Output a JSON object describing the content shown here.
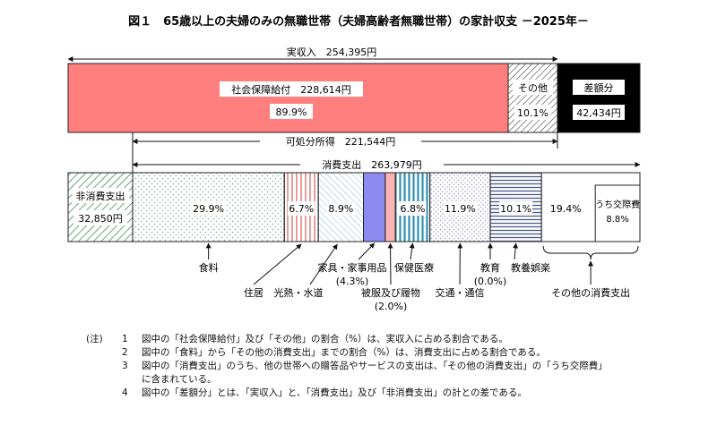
{
  "title": "図１　65歳以上の夫婦のみの無職世帯（夫婦高齢者無職世帯）の家計収支 －2025年－",
  "chart_data": {
    "type": "bar",
    "income_bar": {
      "total_label": "実収入　254,395円",
      "total": 254395,
      "segments": [
        {
          "name": "社会保障給付",
          "value_label": "228,614円",
          "pct_label": "89.9%",
          "value": 228614,
          "pct": 89.9,
          "color": "#ff7f7f"
        },
        {
          "name": "その他",
          "pct_label": "10.1%",
          "value": 25781,
          "pct": 10.1,
          "color": "#ffffff"
        },
        {
          "name": "差額分",
          "value_label": "42,434円",
          "value": 42434,
          "color": "#000000"
        }
      ]
    },
    "disposable_label": "可処分所得　221,544円",
    "disposable": 221544,
    "expense_bar": {
      "total_label": "消費支出　263,979円",
      "total": 263979,
      "non_consumption": {
        "name": "非消費支出",
        "value_label": "32,850円",
        "value": 32850
      },
      "segments": [
        {
          "name": "食料",
          "value": 29.9,
          "pct_label": "29.9%"
        },
        {
          "name": "住居",
          "value": 6.7,
          "pct_label": "6.7%"
        },
        {
          "name": "光熱・水道",
          "value": 8.9,
          "pct_label": "8.9%"
        },
        {
          "name": "家具・家事用品",
          "value": 4.3,
          "pct_label": "(4.3%)"
        },
        {
          "name": "被服及び履物",
          "value": 2.0,
          "pct_label": "(2.0%)"
        },
        {
          "name": "保健医療",
          "value": 6.8,
          "pct_label": "6.8%"
        },
        {
          "name": "交通・通信",
          "value": 11.9,
          "pct_label": "11.9%"
        },
        {
          "name": "教育",
          "value": 0.0,
          "pct_label": "(0.0%)"
        },
        {
          "name": "教養娯楽",
          "value": 10.1,
          "pct_label": "10.1%"
        },
        {
          "name": "その他の消費支出",
          "value": 19.4,
          "pct_label": "19.4%",
          "sub_label": "うち交際費",
          "sub_pct_label": "8.8%",
          "sub_value": 8.8
        }
      ]
    }
  },
  "notes": {
    "mark": "(注)",
    "items": [
      {
        "num": "1",
        "text": "図中の「社会保障給付」及び「その他」の割合（%）は、実収入に占める割合である。"
      },
      {
        "num": "2",
        "text": "図中の「食料」から「その他の消費支出」までの割合（%）は、消費支出に占める割合である。"
      },
      {
        "num": "3",
        "text": "図中の「消費支出」のうち、他の世帯への贈答品やサービスの支出は、「その他の消費支出」の「うち交際費」",
        "cont": "に含まれている。"
      },
      {
        "num": "4",
        "text": "図中の「差額分」とは、「実収入」と、「消費支出」及び「非消費支出」の計との差である。"
      }
    ]
  }
}
